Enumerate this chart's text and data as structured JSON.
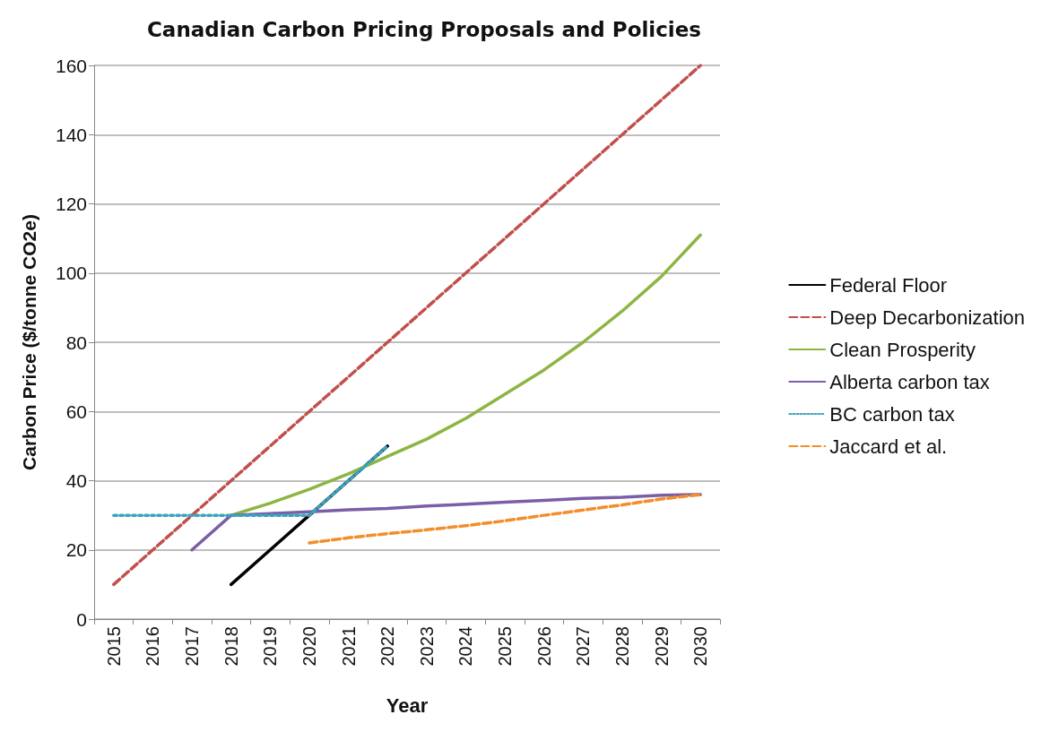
{
  "chart_data": {
    "type": "line",
    "title": "Canadian Carbon Pricing Proposals and Policies",
    "xlabel": "Year",
    "ylabel": "Carbon Price ($/tonne CO2e)",
    "categories": [
      "2015",
      "2016",
      "2017",
      "2018",
      "2019",
      "2020",
      "2021",
      "2022",
      "2023",
      "2024",
      "2025",
      "2026",
      "2027",
      "2028",
      "2029",
      "2030"
    ],
    "ylim": [
      0,
      160
    ],
    "yticks": [
      0,
      20,
      40,
      60,
      80,
      100,
      120,
      140,
      160
    ],
    "grid": "y",
    "legend": "right",
    "marker": "none",
    "series": [
      {
        "name": "Federal Floor",
        "color": "#000000",
        "line_style": "solid",
        "values": [
          null,
          null,
          null,
          10,
          20,
          30,
          40,
          50,
          null,
          null,
          null,
          null,
          null,
          null,
          null,
          null
        ]
      },
      {
        "name": "Deep Decarbonization",
        "color": "#c0504d",
        "line_style": "dashed",
        "values": [
          10,
          20,
          30,
          40,
          50,
          60,
          70,
          80,
          90,
          100,
          110,
          120,
          130,
          140,
          150,
          160
        ]
      },
      {
        "name": "Clean Prosperity",
        "color": "#8db542",
        "line_style": "solid",
        "values": [
          null,
          null,
          null,
          30,
          33.5,
          37.5,
          42,
          47,
          52,
          58,
          65,
          72,
          80,
          89,
          99,
          111
        ]
      },
      {
        "name": "Alberta carbon tax",
        "color": "#7b5ea7",
        "line_style": "solid",
        "values": [
          null,
          null,
          20,
          30,
          30.5,
          31,
          31.6,
          32,
          32.7,
          33.2,
          33.8,
          34.3,
          34.9,
          35.2,
          35.8,
          36
        ]
      },
      {
        "name": "BC carbon tax",
        "color": "#3ca3bd",
        "line_style": "dotted",
        "values": [
          30,
          30,
          30,
          30,
          30,
          30,
          40,
          50,
          null,
          null,
          null,
          null,
          null,
          null,
          null,
          null
        ]
      },
      {
        "name": "Jaccard et al.",
        "color": "#f28e2b",
        "line_style": "dashed",
        "values": [
          null,
          null,
          null,
          null,
          null,
          22,
          23.5,
          24.7,
          25.8,
          27,
          28.4,
          30,
          31.5,
          33,
          34.7,
          36
        ]
      }
    ]
  }
}
